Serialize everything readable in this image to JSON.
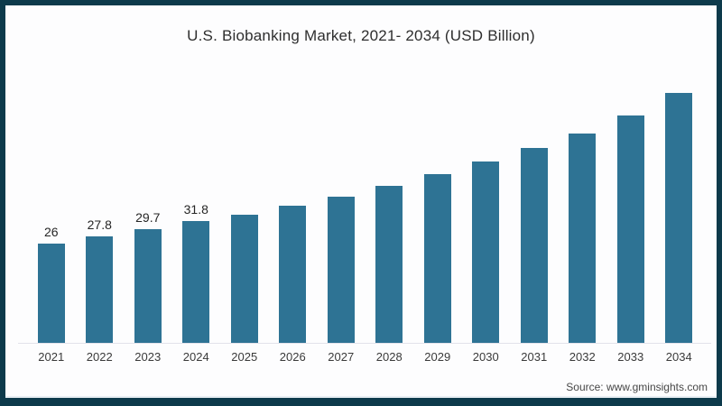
{
  "page": {
    "background": "#fdfdfe",
    "border_color": "#0d3a4b"
  },
  "chart_data": {
    "type": "bar",
    "title": "U.S. Biobanking Market, 2021- 2034 (USD Billion)",
    "categories": [
      "2021",
      "2022",
      "2023",
      "2024",
      "2025",
      "2026",
      "2027",
      "2028",
      "2029",
      "2030",
      "2031",
      "2032",
      "2033",
      "2034"
    ],
    "values": [
      26,
      27.8,
      29.7,
      31.8,
      33.4,
      35.7,
      38.2,
      40.9,
      44.1,
      47.2,
      50.9,
      54.7,
      59.4,
      65.3
    ],
    "value_labels": [
      "26",
      "27.8",
      "29.7",
      "31.8",
      "",
      "",
      "",
      "",
      "",
      "",
      "",
      "",
      "",
      ""
    ],
    "bar_color": "#2e7394",
    "xlabel": "",
    "ylabel": "",
    "ylim": [
      0,
      72.5
    ],
    "grid": false,
    "legend": false,
    "axis_line_color": "#e2e2ea"
  },
  "source": {
    "label": "Source: www.gminsights.com"
  }
}
